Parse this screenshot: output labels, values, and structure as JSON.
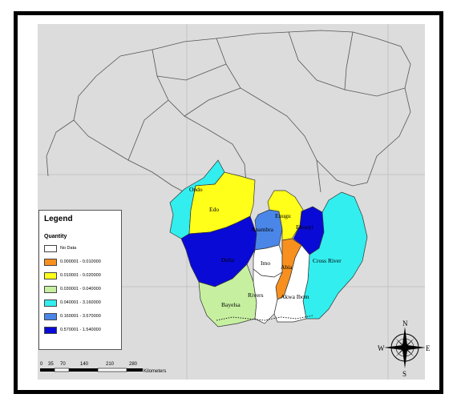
{
  "map": {
    "states": [
      {
        "name": "Ondo",
        "class": "0.040001 - 3.160000"
      },
      {
        "name": "Edo",
        "class": "0.010001 - 0.020000"
      },
      {
        "name": "Delta",
        "class": "0.570001 - 1.540000"
      },
      {
        "name": "Enugu",
        "class": "0.010001 - 0.020000"
      },
      {
        "name": "Anambra",
        "class": "0.160001 - 3.570000"
      },
      {
        "name": "Ebonyi",
        "class": "0.570001 - 1.540000"
      },
      {
        "name": "Cross River",
        "class": "0.040001 - 3.160000"
      },
      {
        "name": "Imo",
        "class": "No Data"
      },
      {
        "name": "Abia",
        "class": "0.000001 - 0.010000"
      },
      {
        "name": "Rivers",
        "class": "No Data"
      },
      {
        "name": "Akwa Ibom",
        "class": "No Data"
      },
      {
        "name": "Bayelsa",
        "class": "0.030001 - 0.040000"
      }
    ],
    "colors": {
      "background": "#dcdcdc",
      "no_data": "#ffffff",
      "orange": "#f7901e",
      "yellow": "#ffff1a",
      "light_green": "#c6f0a0",
      "cyan": "#33eeee",
      "medium_blue": "#4a86e8",
      "dark_blue": "#0a0ad6"
    }
  },
  "legend": {
    "title": "Legend",
    "subtitle": "Quantity",
    "items": [
      {
        "label": "No Data",
        "color": "#ffffff"
      },
      {
        "label": "0.000001 - 0.010000",
        "color": "#f7901e"
      },
      {
        "label": "0.010001 - 0.020000",
        "color": "#ffff1a"
      },
      {
        "label": "0.030001 - 0.040000",
        "color": "#c6f0a0"
      },
      {
        "label": "0.040001 - 3.160000",
        "color": "#33eeee"
      },
      {
        "label": "0.160001 - 3.570000",
        "color": "#4a86e8"
      },
      {
        "label": "0.570001 - 1.540000",
        "color": "#0a0ad6"
      }
    ]
  },
  "scale_bar": {
    "ticks": [
      "0",
      "35",
      "70",
      "140",
      "210",
      "280"
    ],
    "unit": "Kilometers"
  },
  "compass": {
    "n": "N",
    "s": "S",
    "e": "E",
    "w": "W",
    "icon": "north-arrow-icon"
  }
}
